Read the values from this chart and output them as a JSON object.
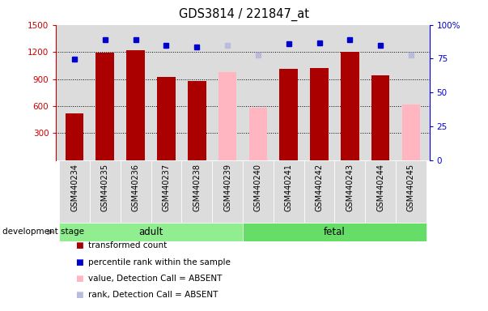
{
  "title": "GDS3814 / 221847_at",
  "samples": [
    "GSM440234",
    "GSM440235",
    "GSM440236",
    "GSM440237",
    "GSM440238",
    "GSM440239",
    "GSM440240",
    "GSM440241",
    "GSM440242",
    "GSM440243",
    "GSM440244",
    "GSM440245"
  ],
  "bar_values": [
    520,
    1190,
    1215,
    920,
    875,
    null,
    null,
    1010,
    1020,
    1200,
    940,
    null
  ],
  "bar_absent_values": [
    null,
    null,
    null,
    null,
    null,
    980,
    580,
    null,
    null,
    null,
    null,
    615
  ],
  "dot_values": [
    1120,
    1340,
    1340,
    1270,
    1255,
    null,
    null,
    1295,
    1300,
    1340,
    1270,
    null
  ],
  "dot_absent_values": [
    null,
    null,
    null,
    null,
    null,
    1270,
    1165,
    null,
    null,
    null,
    null,
    1165
  ],
  "detection_absent": [
    false,
    false,
    false,
    false,
    false,
    true,
    true,
    false,
    false,
    false,
    false,
    true
  ],
  "group": [
    "adult",
    "adult",
    "adult",
    "adult",
    "adult",
    "adult",
    "fetal",
    "fetal",
    "fetal",
    "fetal",
    "fetal",
    "fetal"
  ],
  "ylim_left": [
    0,
    1500
  ],
  "ylim_right": [
    0,
    100
  ],
  "yticks_left": [
    300,
    600,
    900,
    1200,
    1500
  ],
  "yticks_right": [
    0,
    25,
    50,
    75,
    100
  ],
  "bar_color_present": "#AA0000",
  "bar_color_absent": "#FFB6C1",
  "dot_color_present": "#0000CC",
  "dot_color_absent": "#BBBBDD",
  "adult_color": "#90EE90",
  "fetal_color": "#66DD66",
  "bg_color": "#DCDCDC"
}
